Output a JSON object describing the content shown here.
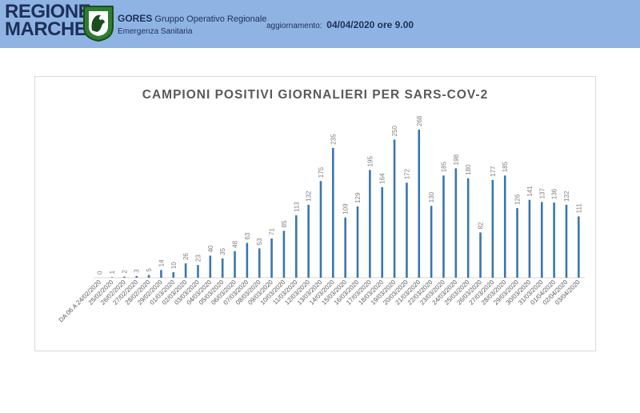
{
  "header": {
    "logo_line1": "REGIONE",
    "logo_line2": "MARCHE",
    "org_acronym": "GORES",
    "org_name_line1": "Gruppo Operativo Regionale",
    "org_name_line2": "Emergenza Sanitaria",
    "update_label": "aggiornamento:",
    "update_value": "04/04/2020 ore 9.00"
  },
  "colors": {
    "header_bg": "#8fb4e3",
    "bar": "#3a76ae",
    "label": "#7f7f7f",
    "title": "#595959"
  },
  "chart_data": {
    "type": "bar",
    "title": "CAMPIONI POSITIVI GIORNALIERI PER SARS-COV-2",
    "xlabel": "",
    "ylabel": "",
    "ylim": [
      0,
      268
    ],
    "grid": false,
    "legend": "none",
    "categories": [
      "DA 06 A 24/02/2020",
      "25/02/2020",
      "26/02/2020",
      "27/02/2020",
      "28/02/2020",
      "29/02/2020",
      "01/03/2020",
      "02/03/2020",
      "03/03/2020",
      "04/03/2020",
      "05/03/2020",
      "06/03/2020",
      "07/03/2020",
      "08/03/2020",
      "09/03/2020",
      "10/03/2020",
      "11/03/2020",
      "12/03/2020",
      "13/03/2020",
      "14/03/2020",
      "15/03/2020",
      "16/03/2020",
      "17/03/2020",
      "18/03/2020",
      "19/03/2020",
      "20/03/2020",
      "21/03/2020",
      "22/03/2020",
      "23/03/2020",
      "24/03/2020",
      "25/03/2020",
      "26/03/2020",
      "27/03/2020",
      "28/03/2020",
      "29/03/2020",
      "30/03/2020",
      "31/03/2020",
      "01/04/2020",
      "02/04/2020",
      "03/04/2020"
    ],
    "values": [
      0,
      1,
      2,
      3,
      5,
      14,
      10,
      26,
      23,
      40,
      35,
      48,
      63,
      53,
      71,
      85,
      113,
      132,
      175,
      235,
      109,
      129,
      195,
      164,
      250,
      172,
      268,
      130,
      185,
      198,
      180,
      82,
      177,
      185,
      126,
      141,
      137,
      136,
      132,
      111
    ]
  }
}
